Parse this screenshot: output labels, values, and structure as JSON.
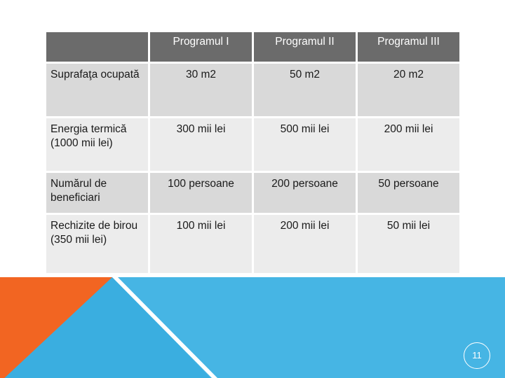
{
  "table": {
    "headers": [
      "",
      "Programul I",
      "Programul II",
      "Programul III"
    ],
    "rows": [
      {
        "label": "Suprafaţa ocupată",
        "values": [
          "30 m2",
          "50 m2",
          "20 m2"
        ]
      },
      {
        "label": "Energia termică (1000 mii lei)",
        "values": [
          "300 mii lei",
          "500 mii lei",
          "200 mii lei"
        ]
      },
      {
        "label": "Numărul de beneficiari",
        "values": [
          "100 persoane",
          "200 persoane",
          "50 persoane"
        ]
      },
      {
        "label": "Rechizite de birou (350 mii lei)",
        "values": [
          "100 mii lei",
          "200 mii lei",
          "50 mii lei"
        ]
      }
    ]
  },
  "footer": {
    "page_number": "11",
    "colors": {
      "orange": "#f26522",
      "blue": "#3aaee0",
      "light_blue": "#5fc3ec",
      "white": "#ffffff"
    }
  }
}
